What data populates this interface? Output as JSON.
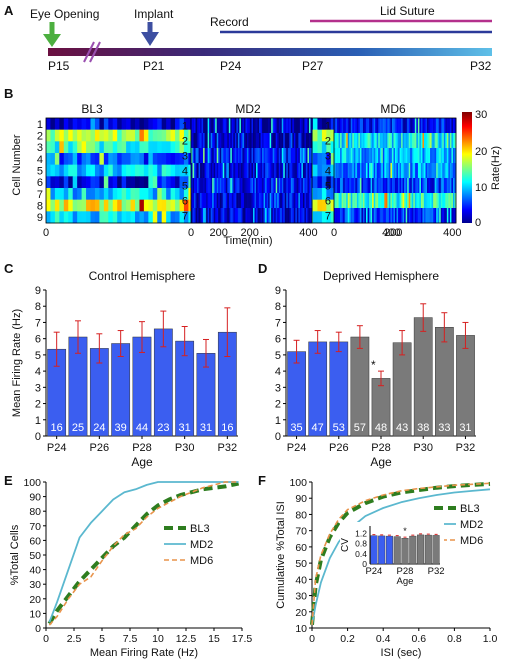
{
  "panels": {
    "a": "A",
    "b": "B",
    "c": "C",
    "d": "D",
    "e": "E",
    "f": "F"
  },
  "timeline": {
    "events": [
      "Eye Opening",
      "Implant",
      "Record",
      "Lid Suture"
    ],
    "ticks": [
      "P15",
      "P21",
      "P24",
      "P27",
      "P32"
    ],
    "colors": {
      "eye": "#4caf3f",
      "implant": "#3d4fa1",
      "record": "#2b3a9a",
      "suture": "#b4308c"
    }
  },
  "heatmaps": {
    "titles": [
      "BL3",
      "MD2",
      "MD6"
    ],
    "ylabel": "Cell Number",
    "xlabel": "Time(min)",
    "xticks": [
      "0",
      "200",
      "400"
    ],
    "rows": [
      9,
      7,
      7
    ],
    "colorbar": {
      "label": "Rate(Hz)",
      "ticks": [
        "30",
        "20",
        "10",
        "0"
      ]
    },
    "row_means": [
      [
        3,
        16,
        13,
        6,
        10,
        3,
        10,
        18,
        10
      ],
      [
        2,
        2,
        4,
        3,
        4,
        3,
        3
      ],
      [
        4,
        11,
        9,
        8,
        5,
        12,
        5
      ]
    ]
  },
  "chart_data": [
    {
      "type": "bar",
      "title": "Control Hemisphere",
      "xlabel": "Age",
      "ylabel": "Mean Firing Rate (Hz)",
      "ylim": [
        0,
        9
      ],
      "yticks": [
        "0",
        "1",
        "2",
        "3",
        "4",
        "5",
        "6",
        "7",
        "8",
        "9"
      ],
      "xticks": [
        "P24",
        "P26",
        "P28",
        "P30",
        "P32"
      ],
      "values": [
        5.35,
        6.1,
        5.4,
        5.7,
        6.1,
        6.6,
        5.85,
        5.1,
        6.4
      ],
      "errors": [
        1.05,
        1.0,
        0.9,
        0.8,
        0.95,
        1.1,
        0.9,
        0.85,
        1.5
      ],
      "counts": [
        "16",
        "25",
        "24",
        "39",
        "44",
        "23",
        "31",
        "31",
        "16"
      ],
      "colors": [
        "#3b5ef0",
        "#3b5ef0",
        "#3b5ef0",
        "#3b5ef0",
        "#3b5ef0",
        "#3b5ef0",
        "#3b5ef0",
        "#3b5ef0",
        "#3b5ef0"
      ]
    },
    {
      "type": "bar",
      "title": "Deprived Hemisphere",
      "xlabel": "Age",
      "ylabel": "",
      "ylim": [
        0,
        9
      ],
      "yticks": [
        "0",
        "1",
        "2",
        "3",
        "4",
        "5",
        "6",
        "7",
        "8",
        "9"
      ],
      "xticks": [
        "P24",
        "P26",
        "P28",
        "P30",
        "P32"
      ],
      "values": [
        5.2,
        5.8,
        5.8,
        6.1,
        3.55,
        5.75,
        7.3,
        6.7,
        6.2
      ],
      "errors": [
        0.7,
        0.7,
        0.6,
        0.7,
        0.45,
        0.75,
        0.85,
        0.9,
        0.8
      ],
      "counts": [
        "35",
        "47",
        "53",
        "57",
        "48",
        "43",
        "38",
        "33",
        "31"
      ],
      "colors": [
        "#3b5ef0",
        "#3b5ef0",
        "#3b5ef0",
        "#7a7a7a",
        "#7a7a7a",
        "#7a7a7a",
        "#7a7a7a",
        "#7a7a7a",
        "#7a7a7a"
      ],
      "annotation": "*"
    },
    {
      "type": "line",
      "xlabel": "Mean Firing Rate (Hz)",
      "ylabel": "%Total Cells",
      "xlim": [
        0,
        17.5
      ],
      "ylim": [
        0,
        100
      ],
      "xticks": [
        "0",
        "2.5",
        "5",
        "7.5",
        "10",
        "12.5",
        "15",
        "17.5"
      ],
      "yticks": [
        "0",
        "10",
        "20",
        "30",
        "40",
        "50",
        "60",
        "70",
        "80",
        "90",
        "100"
      ],
      "series": [
        {
          "name": "BL3",
          "color": "#2e7d1f",
          "style": "dashed-thick",
          "x": [
            0.3,
            1,
            2,
            3,
            4,
            5,
            6,
            7,
            8,
            9,
            10,
            11,
            12,
            13,
            14,
            15,
            16,
            17.2
          ],
          "y": [
            3,
            12,
            22,
            32,
            40,
            48,
            56,
            62,
            70,
            78,
            84,
            88,
            91,
            93,
            95,
            96,
            97,
            99
          ]
        },
        {
          "name": "MD2",
          "color": "#5bb8cf",
          "style": "solid",
          "x": [
            0.3,
            1,
            2,
            3,
            4,
            5,
            6,
            7,
            8,
            9,
            10,
            11,
            12,
            13,
            14,
            15,
            16,
            17.2
          ],
          "y": [
            4,
            18,
            40,
            62,
            72,
            80,
            88,
            93,
            95,
            98,
            100,
            100,
            100,
            100,
            100,
            100,
            100,
            100
          ]
        },
        {
          "name": "MD6",
          "color": "#e8934a",
          "style": "dashed",
          "x": [
            0.3,
            1,
            2,
            3,
            4,
            5,
            6,
            7,
            8,
            9,
            10,
            11,
            12,
            13,
            14,
            15,
            16,
            17.2
          ],
          "y": [
            2,
            8,
            20,
            30,
            35,
            46,
            56,
            64,
            68,
            76,
            82,
            86,
            90,
            93,
            96,
            98,
            100,
            100
          ]
        }
      ]
    },
    {
      "type": "line",
      "xlabel": "ISI (sec)",
      "ylabel": "Cumulative %Total ISI",
      "xlim": [
        0,
        1
      ],
      "ylim": [
        10,
        100
      ],
      "xticks": [
        "0",
        "0.2",
        "0.4",
        "0.6",
        "0.8",
        "1.0"
      ],
      "yticks": [
        "10",
        "20",
        "30",
        "40",
        "50",
        "60",
        "70",
        "80",
        "90",
        "100"
      ],
      "series": [
        {
          "name": "BL3",
          "color": "#2e7d1f",
          "style": "dashed-thick",
          "x": [
            0,
            0.02,
            0.05,
            0.1,
            0.15,
            0.2,
            0.3,
            0.4,
            0.5,
            0.6,
            0.7,
            0.8,
            0.9,
            1.0
          ],
          "y": [
            12,
            36,
            52,
            66,
            75,
            81,
            87,
            91,
            93.5,
            95,
            96.5,
            97.5,
            98.2,
            98.8
          ]
        },
        {
          "name": "MD2",
          "color": "#5bb8cf",
          "style": "solid",
          "x": [
            0,
            0.02,
            0.05,
            0.1,
            0.15,
            0.2,
            0.3,
            0.4,
            0.5,
            0.6,
            0.7,
            0.8,
            0.9,
            1.0
          ],
          "y": [
            12,
            24,
            38,
            53,
            63,
            70,
            79,
            84,
            87.5,
            90,
            92,
            93.5,
            94.5,
            95.5
          ]
        },
        {
          "name": "MD6",
          "color": "#e8934a",
          "style": "dashed",
          "x": [
            0,
            0.02,
            0.05,
            0.1,
            0.15,
            0.2,
            0.3,
            0.4,
            0.5,
            0.6,
            0.7,
            0.8,
            0.9,
            1.0
          ],
          "y": [
            12,
            40,
            55,
            68,
            77,
            83,
            88.5,
            92,
            94.5,
            96,
            97,
            98,
            98.6,
            99.2
          ]
        }
      ],
      "inset": {
        "type": "bar",
        "ylabel": "CV",
        "xlabel": "Age",
        "ylim": [
          0,
          1.5
        ],
        "yticks": [
          "0",
          "0.2",
          "0.4",
          "0.6",
          "0.8",
          "1",
          "1.2",
          "1.4"
        ],
        "xticks": [
          "P24",
          "P28",
          "P32"
        ],
        "values": [
          1.12,
          1.11,
          1.1,
          1.08,
          1.02,
          1.1,
          1.15,
          1.14,
          1.13
        ],
        "colors": [
          "#3b5ef0",
          "#3b5ef0",
          "#3b5ef0",
          "#7a7a7a",
          "#7a7a7a",
          "#7a7a7a",
          "#7a7a7a",
          "#7a7a7a",
          "#7a7a7a"
        ],
        "annotation": "*"
      }
    }
  ]
}
